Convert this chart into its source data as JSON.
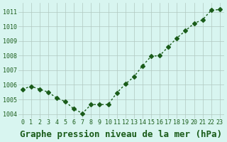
{
  "x": [
    0,
    1,
    2,
    3,
    4,
    5,
    6,
    7,
    8,
    9,
    10,
    11,
    12,
    13,
    14,
    15,
    16,
    17,
    18,
    19,
    20,
    21,
    22,
    23
  ],
  "y": [
    1005.7,
    1005.9,
    1005.7,
    1005.5,
    1005.1,
    1004.85,
    1004.35,
    1004.05,
    1004.65,
    1004.65,
    1004.65,
    1005.45,
    1006.05,
    1006.55,
    1007.3,
    1007.95,
    1008.0,
    1008.6,
    1009.2,
    1009.7,
    1010.2,
    1010.45,
    1011.1,
    1011.15
  ],
  "line_color": "#1a5c1a",
  "marker": "D",
  "markersize": 3,
  "linewidth": 1,
  "background_color": "#d8f5f0",
  "grid_color": "#b0c8c0",
  "xlabel": "Graphe pression niveau de la mer (hPa)",
  "xlabel_fontsize": 9,
  "ytick_labels": [
    "1004",
    "1005",
    "1006",
    "1007",
    "1008",
    "1009",
    "1010",
    "1011"
  ],
  "ytick_values": [
    1004,
    1005,
    1006,
    1007,
    1008,
    1009,
    1010,
    1011
  ],
  "ylim": [
    1003.7,
    1011.6
  ],
  "xlim": [
    -0.5,
    23.5
  ],
  "xtick_fontsize": 6,
  "ytick_fontsize": 6,
  "tick_color": "#1a5c1a"
}
